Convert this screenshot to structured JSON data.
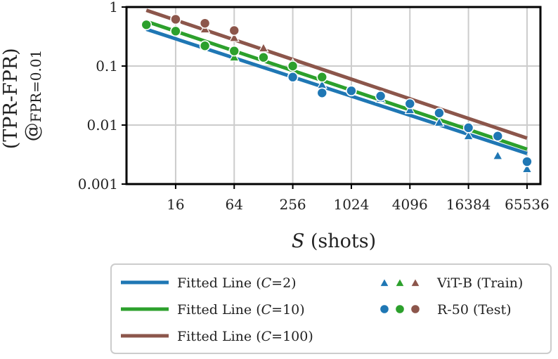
{
  "chart_data": {
    "type": "scatter",
    "xlabel_var": "S",
    "xlabel_rest": " (shots)",
    "ylabel_line1": "(TPR-FPR)",
    "ylabel_line2_prefix": "@",
    "ylabel_line2_rest": "FPR=0.01",
    "x_scale": "log2",
    "y_scale": "log10",
    "xlim": [
      5,
      90000
    ],
    "ylim": [
      0.001,
      1
    ],
    "x_ticks": [
      16,
      64,
      256,
      1024,
      4096,
      16384,
      65536
    ],
    "x_tick_labels": [
      "16",
      "64",
      "256",
      "1024",
      "4096",
      "16384",
      "65536"
    ],
    "y_ticks": [
      0.001,
      0.01,
      0.1,
      1
    ],
    "y_tick_labels": [
      "0.001",
      "0.01",
      "0.1",
      "1"
    ],
    "grid": true,
    "legend_position": "below",
    "colors": {
      "C2": "#1f77b4",
      "C10": "#2ca02c",
      "C100": "#8c564b"
    },
    "fitted_lines": [
      {
        "name": "C=2",
        "color": "#1f77b4",
        "x": [
          8,
          65536
        ],
        "y": [
          0.42,
          0.0033
        ]
      },
      {
        "name": "C=10",
        "color": "#2ca02c",
        "x": [
          8,
          65536
        ],
        "y": [
          0.57,
          0.0039
        ]
      },
      {
        "name": "C=100",
        "color": "#8c564b",
        "x": [
          8,
          65536
        ],
        "y": [
          0.88,
          0.006
        ]
      }
    ],
    "series": [
      {
        "name": "R-50 (Test)",
        "marker": "circle",
        "color": "#1f77b4",
        "x": [
          256,
          512,
          1024,
          2048,
          4096,
          8192,
          16384,
          32768,
          65536
        ],
        "y": [
          0.065,
          0.035,
          0.038,
          0.031,
          0.023,
          0.016,
          0.009,
          0.0065,
          0.0024
        ]
      },
      {
        "name": "R-50 (Test)",
        "marker": "circle",
        "color": "#2ca02c",
        "x": [
          8,
          16,
          32,
          64,
          128,
          256,
          512
        ],
        "y": [
          0.5,
          0.39,
          0.22,
          0.18,
          0.14,
          0.1,
          0.065
        ]
      },
      {
        "name": "R-50 (Test)",
        "marker": "circle",
        "color": "#8c564b",
        "x": [
          16,
          32,
          64
        ],
        "y": [
          0.62,
          0.53,
          0.4
        ]
      },
      {
        "name": "ViT-B (Train)",
        "marker": "triangle",
        "color": "#1f77b4",
        "x": [
          512,
          2048,
          4096,
          8192,
          16384,
          32768,
          65536
        ],
        "y": [
          0.048,
          0.028,
          0.018,
          0.011,
          0.0065,
          0.003,
          0.0018
        ]
      },
      {
        "name": "ViT-B (Train)",
        "marker": "triangle",
        "color": "#2ca02c",
        "x": [
          64,
          128,
          256
        ],
        "y": [
          0.14,
          0.15,
          0.11
        ]
      },
      {
        "name": "ViT-B (Train)",
        "marker": "triangle",
        "color": "#8c564b",
        "x": [
          16,
          32,
          64,
          128
        ],
        "y": [
          0.6,
          0.42,
          0.3,
          0.2
        ]
      }
    ],
    "legend": {
      "line_entries": [
        {
          "prefix": "Fitted Line (",
          "var": "C",
          "suffix": "=2)",
          "color": "#1f77b4"
        },
        {
          "prefix": "Fitted Line (",
          "var": "C",
          "suffix": "=10)",
          "color": "#2ca02c"
        },
        {
          "prefix": "Fitted Line (",
          "var": "C",
          "suffix": "=100)",
          "color": "#8c564b"
        }
      ],
      "marker_entries": [
        {
          "label": "ViT-B (Train)",
          "marker": "triangle",
          "colors": [
            "#1f77b4",
            "#2ca02c",
            "#8c564b"
          ]
        },
        {
          "label": "R-50 (Test)",
          "marker": "circle",
          "colors": [
            "#1f77b4",
            "#2ca02c",
            "#8c564b"
          ]
        }
      ]
    }
  }
}
